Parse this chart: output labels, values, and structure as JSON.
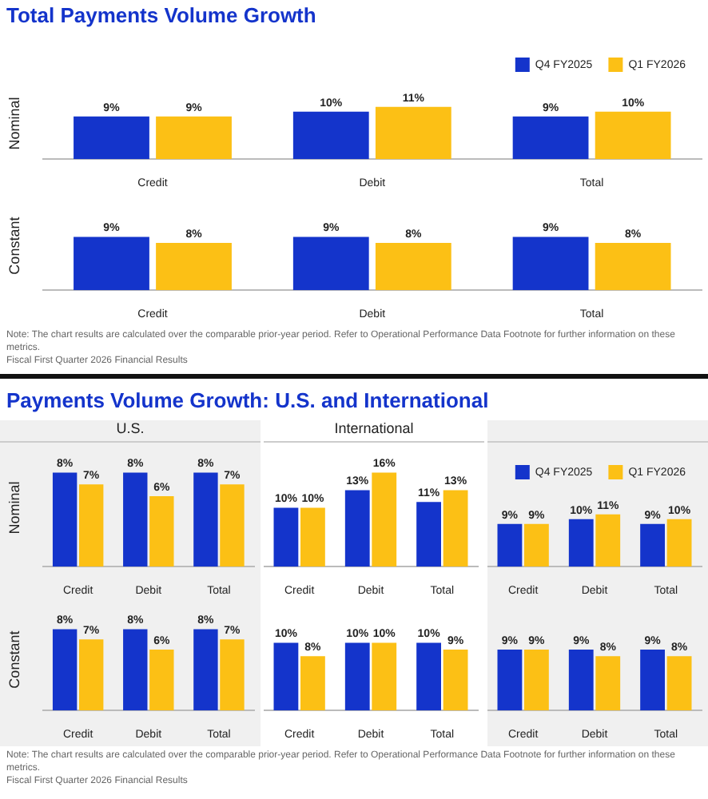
{
  "chart_data": [
    {
      "type": "bar",
      "title": "Total Payments Volume Growth",
      "ylabel": "Nominal",
      "categories": [
        "Credit",
        "Debit",
        "Total"
      ],
      "legend": "top right",
      "series": [
        {
          "name": "Q4 FY2025",
          "color": "#1434cb",
          "values": [
            9,
            10,
            9
          ],
          "value_labels": [
            "9%",
            "10%",
            "9%"
          ]
        },
        {
          "name": "Q1 FY2026",
          "color": "#fcc015",
          "values": [
            9,
            11,
            10
          ],
          "value_labels": [
            "9%",
            "11%",
            "10%"
          ]
        }
      ]
    },
    {
      "type": "bar",
      "ylabel": "Constant",
      "categories": [
        "Credit",
        "Debit",
        "Total"
      ],
      "annotations": [
        "Note: The chart results are calculated over the comparable prior-year period. Refer to Operational Performance Data Footnote for further information on these metrics.",
        "Fiscal First Quarter 2026 Financial Results"
      ],
      "series": [
        {
          "color": "#1434cb",
          "values": [
            9,
            9,
            9
          ],
          "value_labels": [
            "9%",
            "9%",
            "9%"
          ]
        },
        {
          "color": "#fcc015",
          "values": [
            8,
            8,
            8
          ],
          "value_labels": [
            "8%",
            "8%",
            "8%"
          ]
        }
      ]
    },
    {
      "type": "bar",
      "title": "Payments Volume Growth: U.S. and International",
      "subtitle": "U.S.",
      "ylabel": "Nominal",
      "categories": [
        "Credit",
        "Debit",
        "Total"
      ],
      "series": [
        {
          "color": "#1434cb",
          "values": [
            8,
            8,
            8
          ],
          "value_labels": [
            "8%",
            "8%",
            "8%"
          ]
        },
        {
          "color": "#fcc015",
          "values": [
            7,
            6,
            7
          ],
          "value_labels": [
            "7%",
            "6%",
            "7%"
          ]
        }
      ]
    },
    {
      "type": "bar",
      "ylabel": "Constant",
      "categories": [
        "Credit",
        "Debit",
        "Total"
      ],
      "series": [
        {
          "color": "#1434cb",
          "values": [
            8,
            8,
            8
          ],
          "value_labels": [
            "8%",
            "8%",
            "8%"
          ]
        },
        {
          "color": "#fcc015",
          "values": [
            7,
            6,
            7
          ],
          "value_labels": [
            "7%",
            "6%",
            "7%"
          ]
        }
      ]
    },
    {
      "type": "bar",
      "title": "International",
      "categories": [
        "Credit",
        "Debit",
        "Total"
      ],
      "series": [
        {
          "color": "#1434cb",
          "values": [
            10,
            13,
            11
          ],
          "value_labels": [
            "10%",
            "13%",
            "11%"
          ]
        },
        {
          "color": "#fcc015",
          "values": [
            10,
            16,
            13
          ],
          "value_labels": [
            "10%",
            "16%",
            "13%"
          ]
        }
      ]
    },
    {
      "type": "bar",
      "categories": [
        "Credit",
        "Debit",
        "Total"
      ],
      "series": [
        {
          "color": "#1434cb",
          "values": [
            10,
            10,
            10
          ],
          "value_labels": [
            "10%",
            "10%",
            "10%"
          ]
        },
        {
          "color": "#fcc015",
          "values": [
            8,
            10,
            9
          ],
          "value_labels": [
            "8%",
            "10%",
            "9%"
          ]
        }
      ]
    },
    {
      "type": "bar",
      "categories": [
        "Credit",
        "Debit",
        "Total"
      ],
      "legend": "top right",
      "series": [
        {
          "name": "Q4 FY2025",
          "color": "#1434cb",
          "values": [
            9,
            10,
            9
          ],
          "value_labels": [
            "9%",
            "10%",
            "9%"
          ]
        },
        {
          "name": "Q1 FY2026",
          "color": "#fcc015",
          "values": [
            9,
            11,
            10
          ],
          "value_labels": [
            "9%",
            "11%",
            "10%"
          ]
        }
      ]
    },
    {
      "type": "bar",
      "categories": [
        "Credit",
        "Debit",
        "Total"
      ],
      "annotations": [
        "Note: The chart results are calculated over the comparable prior-year period. Refer to Operational Performance Data Footnote for further information on these metrics.",
        "Fiscal First Quarter 2026 Financial Results"
      ],
      "series": [
        {
          "color": "#1434cb",
          "values": [
            9,
            9,
            9
          ],
          "value_labels": [
            "9%",
            "9%",
            "9%"
          ]
        },
        {
          "color": "#fcc015",
          "values": [
            9,
            8,
            8
          ],
          "value_labels": [
            "9%",
            "8%",
            "8%"
          ]
        }
      ]
    }
  ]
}
